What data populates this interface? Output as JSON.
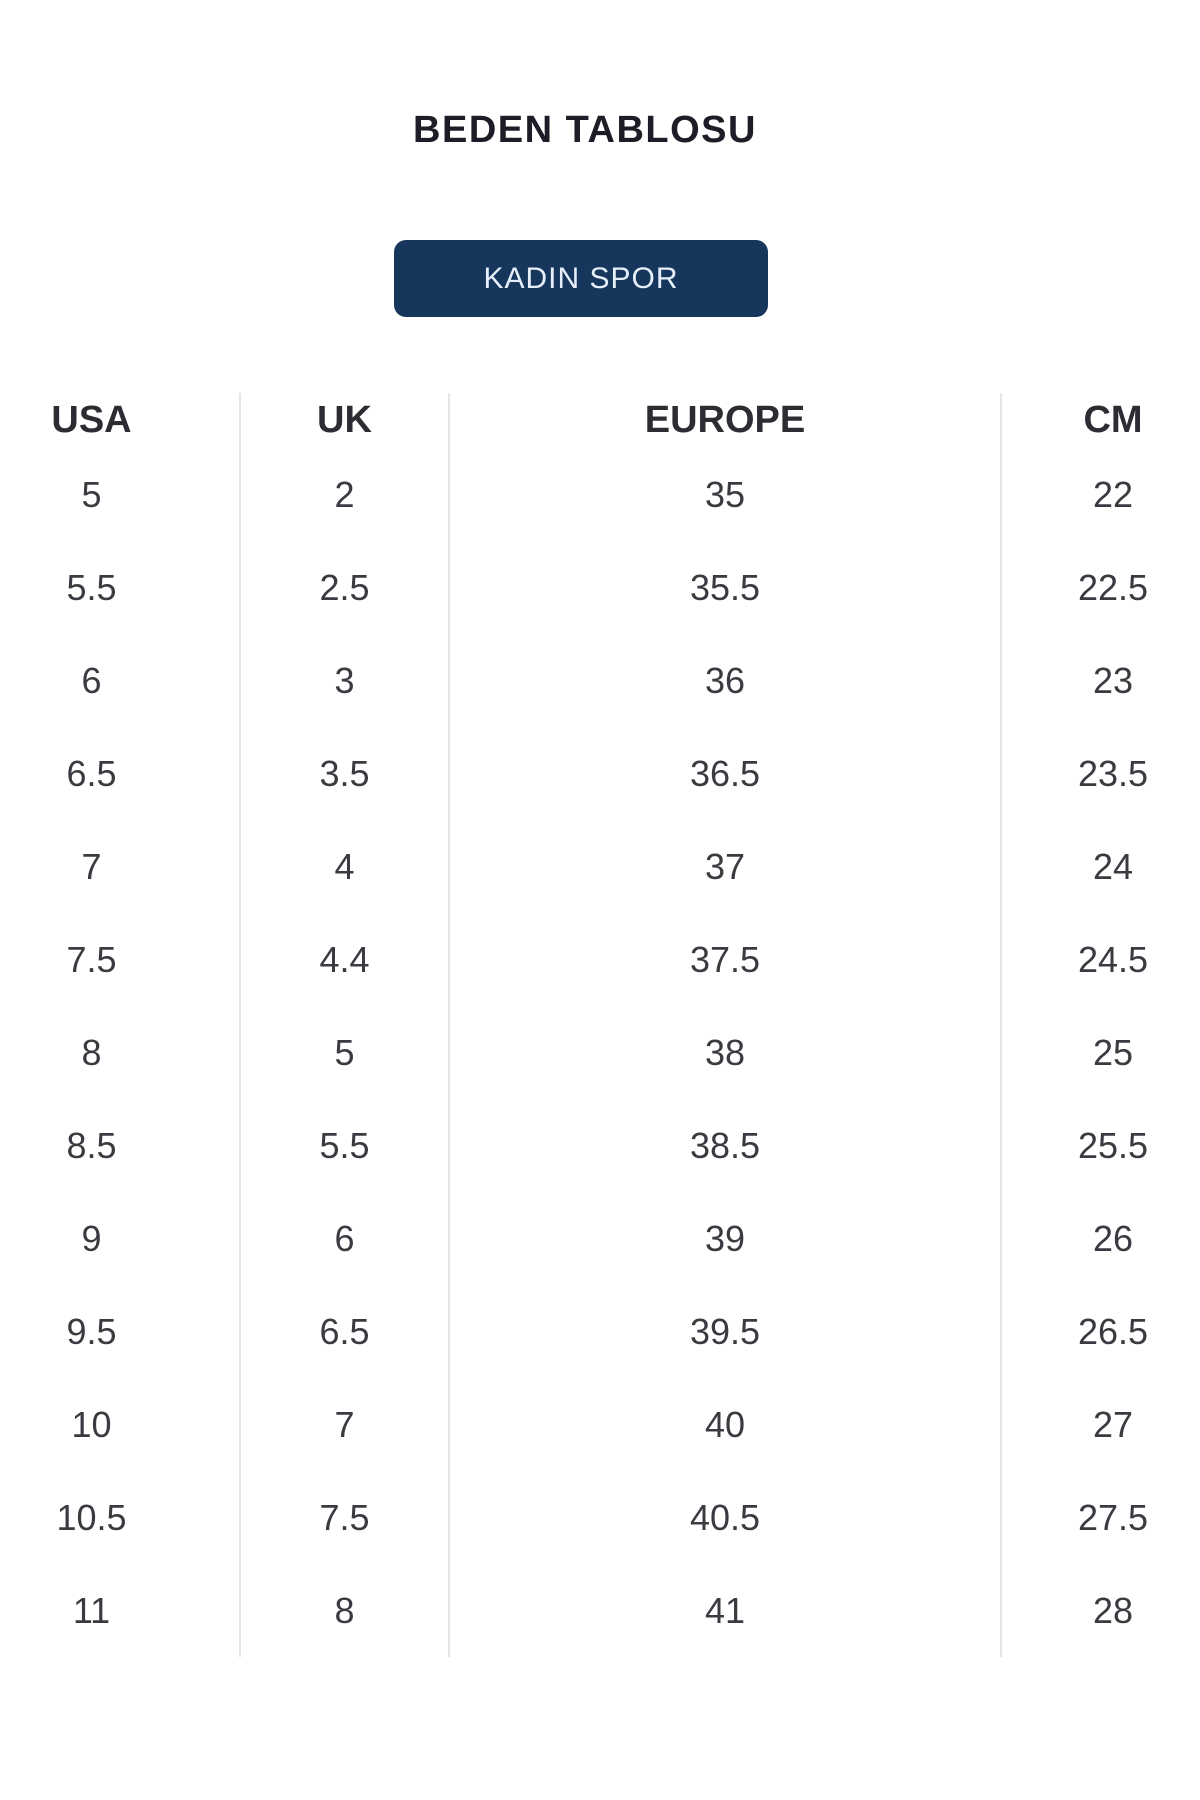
{
  "page": {
    "title": "BEDEN TABLOSU"
  },
  "category": {
    "label": "KADIN SPOR"
  },
  "size_table": {
    "columns": [
      "USA",
      "UK",
      "EUROPE",
      "CM"
    ],
    "rows": [
      [
        "5",
        "2",
        "35",
        "22"
      ],
      [
        "5.5",
        "2.5",
        "35.5",
        "22.5"
      ],
      [
        "6",
        "3",
        "36",
        "23"
      ],
      [
        "6.5",
        "3.5",
        "36.5",
        "23.5"
      ],
      [
        "7",
        "4",
        "37",
        "24"
      ],
      [
        "7.5",
        "4.4",
        "37.5",
        "24.5"
      ],
      [
        "8",
        "5",
        "38",
        "25"
      ],
      [
        "8.5",
        "5.5",
        "38.5",
        "25.5"
      ],
      [
        "9",
        "6",
        "39",
        "26"
      ],
      [
        "9.5",
        "6.5",
        "39.5",
        "26.5"
      ],
      [
        "10",
        "7",
        "40",
        "27"
      ],
      [
        "10.5",
        "7.5",
        "40.5",
        "27.5"
      ],
      [
        "11",
        "8",
        "41",
        "28"
      ]
    ]
  },
  "colors": {
    "button_bg": "#17365c",
    "button_text": "#e6eff9",
    "title_text": "#1c1d27",
    "header_text": "#2c2d33",
    "value_text": "#3a3b41",
    "divider": "#e6e6ea"
  }
}
